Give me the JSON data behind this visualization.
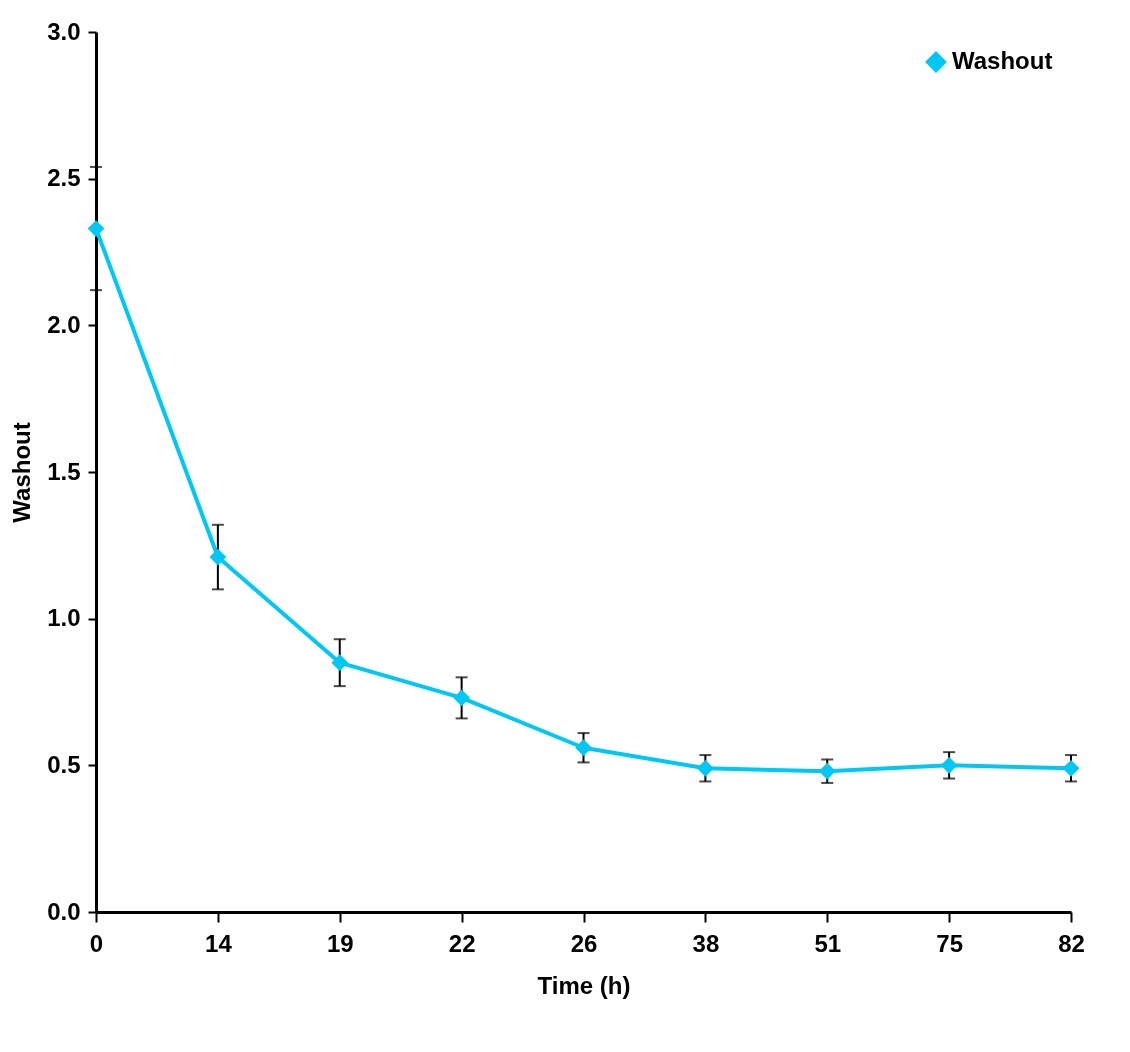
{
  "chart_data": {
    "type": "line",
    "xlabel": "Time (h)",
    "ylabel": "Washout",
    "categories": [
      "0",
      "14",
      "19",
      "22",
      "26",
      "38",
      "51",
      "75",
      "82"
    ],
    "series": [
      {
        "name": "Washout",
        "color": "#00c8f5",
        "values": [
          2.33,
          1.21,
          0.85,
          0.73,
          0.56,
          0.49,
          0.48,
          0.5,
          0.49
        ],
        "errors": [
          0.21,
          0.11,
          0.08,
          0.07,
          0.05,
          0.045,
          0.04,
          0.045,
          0.045
        ]
      }
    ],
    "ylim": [
      0,
      3
    ],
    "yticks": [
      {
        "value": 0,
        "label": "0.0"
      },
      0.5,
      {
        "value": 1,
        "label": "1.0"
      },
      1.5,
      {
        "value": 2,
        "label": "2.0"
      },
      2.5,
      {
        "value": 3,
        "label": "3.0"
      }
    ],
    "grid": false,
    "legend": "top right",
    "marker": "diamond",
    "line_style": "solid"
  }
}
